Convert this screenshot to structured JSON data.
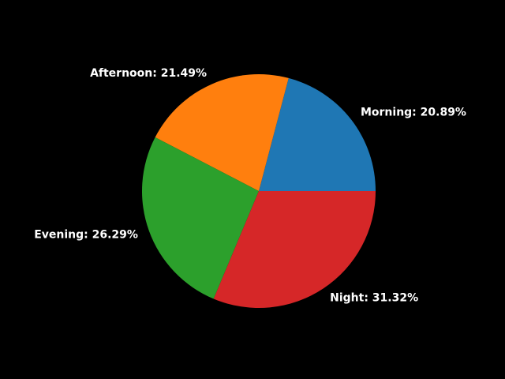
{
  "chart_data": {
    "type": "pie",
    "title": "",
    "start_angle_deg": 0,
    "direction": "counterclockwise",
    "slices": [
      {
        "label": "Morning",
        "value": 20.89,
        "display": "Morning: 20.89%",
        "color": "#1f77b4"
      },
      {
        "label": "Afternoon",
        "value": 21.49,
        "display": "Afternoon: 21.49%",
        "color": "#ff7f0e"
      },
      {
        "label": "Evening",
        "value": 26.29,
        "display": "Evening: 26.29%",
        "color": "#2ca02c"
      },
      {
        "label": "Night",
        "value": 31.32,
        "display": "Night: 31.32%",
        "color": "#d62728"
      }
    ]
  },
  "background_color": "#000000",
  "label_color": "#ffffff"
}
